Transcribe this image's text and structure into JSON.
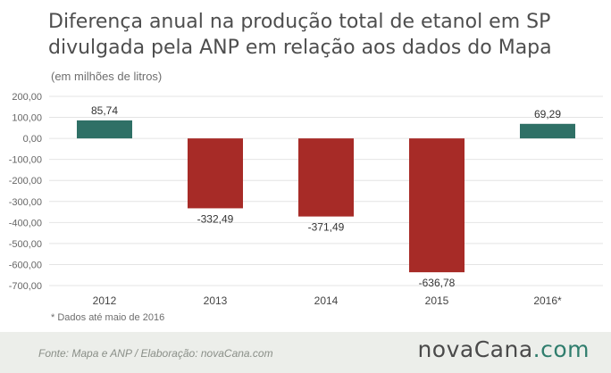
{
  "title": "Diferença anual na produção total de etanol em SP divulgada pela ANP em relação aos dados do Mapa",
  "subtitle": "(em milhões de litros)",
  "footnote": "* Dados até maio de 2016",
  "footer": {
    "source": "Fonte:  Mapa  e  ANP  /  Elaboração:  novaCana.com",
    "brand_main": "novaCana",
    "brand_tld": ".com"
  },
  "colors": {
    "positive": "#2f7066",
    "negative": "#a72b27",
    "grid": "#e4e4e4",
    "axis_text": "#666666",
    "footer_bg": "#eceeea"
  },
  "chart_data": {
    "type": "bar",
    "categories": [
      "2012",
      "2013",
      "2014",
      "2015",
      "2016*"
    ],
    "values": [
      85.74,
      -332.49,
      -371.49,
      -636.78,
      69.29
    ],
    "data_labels": [
      "85,74",
      "-332,49",
      "-371,49",
      "-636,78",
      "69,29"
    ],
    "yticks": [
      200,
      100,
      0,
      -100,
      -200,
      -300,
      -400,
      -500,
      -600,
      -700
    ],
    "ytick_labels": [
      "200,00",
      "100,00",
      "0,00",
      "-100,00",
      "-200,00",
      "-300,00",
      "-400,00",
      "-500,00",
      "-600,00",
      "-700,00"
    ],
    "ylim": [
      -700,
      200
    ],
    "grid": true,
    "title": "Diferença anual na produção total de etanol em SP divulgada pela ANP em relação aos dados do Mapa",
    "xlabel": "",
    "ylabel": "(em milhões de litros)"
  }
}
